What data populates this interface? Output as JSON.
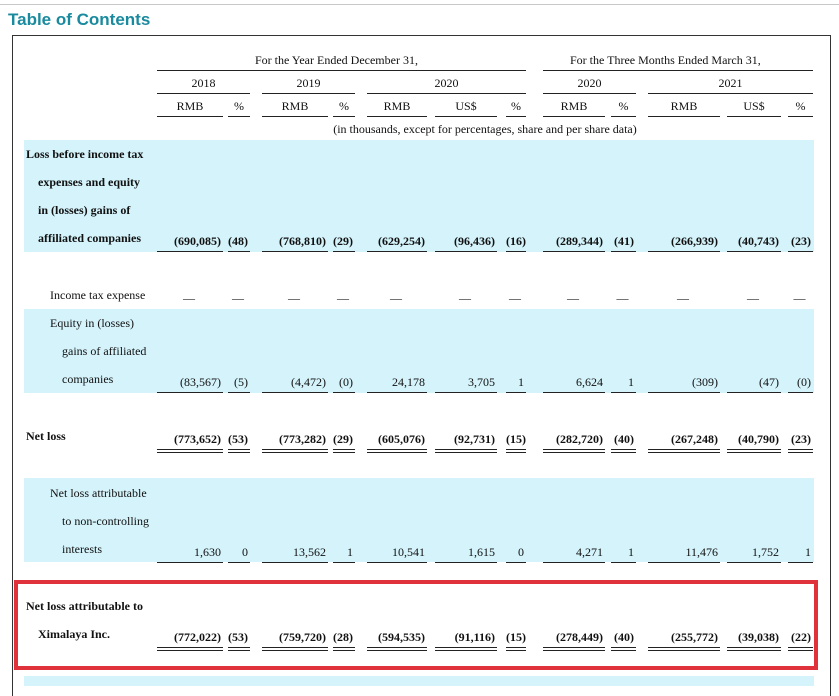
{
  "page_title": "Table of Contents",
  "header": {
    "group_year": "For the Year Ended December 31,",
    "group_quarter": "For the Three Months Ended March 31,",
    "years": [
      "2018",
      "2019",
      "2020",
      "2020",
      "2021"
    ],
    "sub": [
      "RMB",
      "%",
      "RMB",
      "%",
      "RMB",
      "US$",
      "%",
      "RMB",
      "%",
      "RMB",
      "US$",
      "%"
    ],
    "note": "(in thousands, except for percentages, share and per share data)"
  },
  "rows": [
    {
      "label_lines": [
        "Loss before income tax",
        "expenses and equity",
        "in (losses) gains of",
        "affiliated companies"
      ],
      "values": [
        "(690,085)",
        "(48)",
        "(768,810)",
        "(29)",
        "(629,254)",
        "(96,436)",
        "(16)",
        "(289,344)",
        "(41)",
        "(266,939)",
        "(40,743)",
        "(23)"
      ]
    },
    {
      "label_lines": [
        "Income tax expense"
      ],
      "values": [
        "—",
        "—",
        "—",
        "—",
        "—",
        "—",
        "—",
        "—",
        "—",
        "—",
        "—",
        "—"
      ]
    },
    {
      "label_lines": [
        "Equity in (losses)",
        "gains of affiliated",
        "companies"
      ],
      "values": [
        "(83,567)",
        "(5)",
        "(4,472)",
        "(0)",
        "24,178",
        "3,705",
        "1",
        "6,624",
        "1",
        "(309)",
        "(47)",
        "(0)"
      ]
    },
    {
      "label_lines": [
        "Net loss"
      ],
      "values": [
        "(773,652)",
        "(53)",
        "(773,282)",
        "(29)",
        "(605,076)",
        "(92,731)",
        "(15)",
        "(282,720)",
        "(40)",
        "(267,248)",
        "(40,790)",
        "(23)"
      ]
    },
    {
      "label_lines": [
        "Net loss attributable",
        "to non-controlling",
        "interests"
      ],
      "values": [
        "1,630",
        "0",
        "13,562",
        "1",
        "10,541",
        "1,615",
        "0",
        "4,271",
        "1",
        "11,476",
        "1,752",
        "1"
      ]
    },
    {
      "label_lines": [
        "Net loss attributable to",
        "Ximalaya Inc."
      ],
      "values": [
        "(772,022)",
        "(53)",
        "(759,720)",
        "(28)",
        "(594,535)",
        "(91,116)",
        "(15)",
        "(278,449)",
        "(40)",
        "(255,772)",
        "(39,038)",
        "(22)"
      ]
    }
  ],
  "colors": {
    "title": "#1a8a9e",
    "shade": "#d4f3fb",
    "highlight": "#e0323a"
  }
}
